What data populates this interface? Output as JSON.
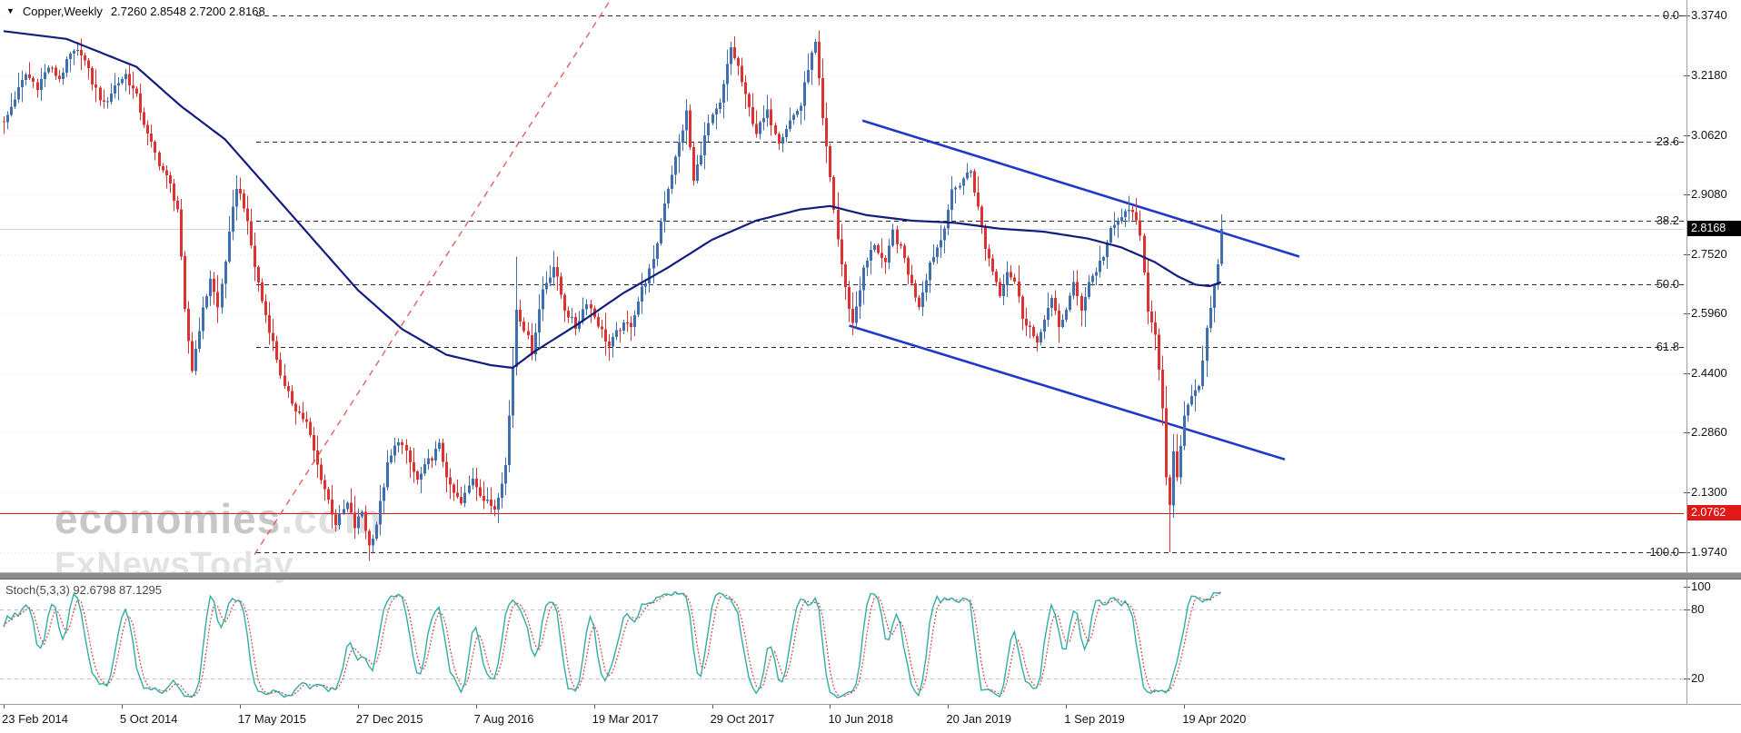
{
  "window": {
    "symbol": "Copper,Weekly",
    "ohlc": "2.7260 2.8548 2.7200 2.8168"
  },
  "watermark": {
    "brand": "economies",
    "suffix": ".com",
    "tagline": "FxNewsToday"
  },
  "price_axis": {
    "ticks": [
      "3.3740",
      "3.2180",
      "3.0620",
      "2.9080",
      "2.7520",
      "2.5960",
      "2.4400",
      "2.2860",
      "2.1300",
      "1.9740"
    ],
    "current_price": "2.8168",
    "alert_price": "2.0762"
  },
  "indicator_panel": {
    "label": "Stoch(5,3,3) 92.6798 87.1295",
    "axis_labels": [
      {
        "text": "100",
        "value": 100
      },
      {
        "text": "80",
        "value": 80
      },
      {
        "text": "20",
        "value": 20
      }
    ],
    "level_lines": [
      80,
      20
    ]
  },
  "x_axis": {
    "labels": [
      {
        "text": "23 Feb 2014",
        "week": 0
      },
      {
        "text": "5 Oct 2014",
        "week": 32
      },
      {
        "text": "17 May 2015",
        "week": 64
      },
      {
        "text": "27 Dec 2015",
        "week": 96
      },
      {
        "text": "7 Aug 2016",
        "week": 128
      },
      {
        "text": "19 Mar 2017",
        "week": 160
      },
      {
        "text": "29 Oct 2017",
        "week": 192
      },
      {
        "text": "10 Jun 2018",
        "week": 224
      },
      {
        "text": "20 Jan 2019",
        "week": 256
      },
      {
        "text": "1 Sep 2019",
        "week": 288
      },
      {
        "text": "19 Apr 2020",
        "week": 320
      }
    ]
  },
  "colors": {
    "bull": "#3f6fae",
    "bear": "#dc3232",
    "ma": "#131d7e",
    "channel_blue": "#2138c9",
    "trend_red": "#e06060",
    "fib_line": "#2a2a2a",
    "grid": "#dfe7ee",
    "alert_line": "#e01818",
    "current_line": "#c5d9ea",
    "badge_current_bg": "#000000",
    "badge_alert_bg": "#e01818",
    "stoch_k": "#2fada5",
    "stoch_d": "#d04545",
    "stoch_level": "#c0c0c0",
    "axis_text": "#151515"
  },
  "chart_data": {
    "type": "candlestick",
    "symbol": "Copper",
    "timeframe": "Weekly",
    "last_bar": {
      "open": 2.726,
      "high": 2.8548,
      "low": 2.72,
      "close": 2.8168
    },
    "price_range_top": 3.374,
    "price_range_bottom": 1.974,
    "y_ticks": [
      3.374,
      3.218,
      3.062,
      2.908,
      2.752,
      2.596,
      2.44,
      2.286,
      2.13,
      1.974
    ],
    "alert_price": 2.0762,
    "weeks": 331,
    "close_anchors": [
      [
        0,
        3.09
      ],
      [
        3,
        3.16
      ],
      [
        6,
        3.22
      ],
      [
        9,
        3.19
      ],
      [
        12,
        3.24
      ],
      [
        15,
        3.21
      ],
      [
        18,
        3.27
      ],
      [
        21,
        3.28
      ],
      [
        24,
        3.2
      ],
      [
        27,
        3.14
      ],
      [
        30,
        3.19
      ],
      [
        33,
        3.22
      ],
      [
        36,
        3.16
      ],
      [
        39,
        3.06
      ],
      [
        42,
        2.99
      ],
      [
        45,
        2.93
      ],
      [
        47,
        2.87
      ],
      [
        49,
        2.6
      ],
      [
        51,
        2.45
      ],
      [
        53,
        2.56
      ],
      [
        56,
        2.69
      ],
      [
        58,
        2.61
      ],
      [
        61,
        2.8
      ],
      [
        63,
        2.93
      ],
      [
        65,
        2.88
      ],
      [
        68,
        2.72
      ],
      [
        70,
        2.63
      ],
      [
        73,
        2.52
      ],
      [
        76,
        2.4
      ],
      [
        79,
        2.35
      ],
      [
        82,
        2.31
      ],
      [
        85,
        2.2
      ],
      [
        88,
        2.11
      ],
      [
        90,
        2.05
      ],
      [
        93,
        2.1
      ],
      [
        95,
        2.04
      ],
      [
        97,
        2.08
      ],
      [
        99,
        1.99
      ],
      [
        101,
        2.05
      ],
      [
        104,
        2.2
      ],
      [
        107,
        2.27
      ],
      [
        109,
        2.23
      ],
      [
        112,
        2.16
      ],
      [
        115,
        2.21
      ],
      [
        118,
        2.25
      ],
      [
        121,
        2.14
      ],
      [
        124,
        2.1
      ],
      [
        127,
        2.17
      ],
      [
        130,
        2.11
      ],
      [
        133,
        2.09
      ],
      [
        136,
        2.2
      ],
      [
        138,
        2.46
      ],
      [
        139,
        2.61
      ],
      [
        141,
        2.56
      ],
      [
        143,
        2.5
      ],
      [
        146,
        2.66
      ],
      [
        149,
        2.72
      ],
      [
        152,
        2.61
      ],
      [
        155,
        2.56
      ],
      [
        158,
        2.63
      ],
      [
        161,
        2.57
      ],
      [
        164,
        2.51
      ],
      [
        167,
        2.56
      ],
      [
        170,
        2.57
      ],
      [
        173,
        2.66
      ],
      [
        176,
        2.73
      ],
      [
        179,
        2.89
      ],
      [
        182,
        3.0
      ],
      [
        185,
        3.12
      ],
      [
        187,
        2.94
      ],
      [
        189,
        3.02
      ],
      [
        191,
        3.09
      ],
      [
        194,
        3.14
      ],
      [
        197,
        3.29
      ],
      [
        199,
        3.24
      ],
      [
        201,
        3.16
      ],
      [
        204,
        3.07
      ],
      [
        207,
        3.12
      ],
      [
        210,
        3.05
      ],
      [
        213,
        3.1
      ],
      [
        216,
        3.14
      ],
      [
        218,
        3.24
      ],
      [
        220,
        3.3
      ],
      [
        222,
        3.1
      ],
      [
        224,
        2.95
      ],
      [
        226,
        2.79
      ],
      [
        228,
        2.66
      ],
      [
        230,
        2.57
      ],
      [
        233,
        2.71
      ],
      [
        236,
        2.78
      ],
      [
        239,
        2.72
      ],
      [
        241,
        2.81
      ],
      [
        244,
        2.74
      ],
      [
        246,
        2.67
      ],
      [
        248,
        2.62
      ],
      [
        251,
        2.73
      ],
      [
        254,
        2.79
      ],
      [
        257,
        2.91
      ],
      [
        260,
        2.95
      ],
      [
        262,
        2.97
      ],
      [
        264,
        2.87
      ],
      [
        266,
        2.77
      ],
      [
        268,
        2.71
      ],
      [
        270,
        2.65
      ],
      [
        272,
        2.71
      ],
      [
        274,
        2.68
      ],
      [
        276,
        2.59
      ],
      [
        278,
        2.56
      ],
      [
        280,
        2.51
      ],
      [
        282,
        2.59
      ],
      [
        284,
        2.63
      ],
      [
        286,
        2.56
      ],
      [
        288,
        2.61
      ],
      [
        290,
        2.67
      ],
      [
        292,
        2.61
      ],
      [
        294,
        2.68
      ],
      [
        296,
        2.71
      ],
      [
        298,
        2.75
      ],
      [
        300,
        2.81
      ],
      [
        303,
        2.85
      ],
      [
        306,
        2.87
      ],
      [
        308,
        2.79
      ],
      [
        310,
        2.61
      ],
      [
        312,
        2.55
      ],
      [
        314,
        2.34
      ],
      [
        315,
        2.16
      ],
      [
        316,
        2.1
      ],
      [
        317,
        2.23
      ],
      [
        318,
        2.16
      ],
      [
        319,
        2.26
      ],
      [
        320,
        2.33
      ],
      [
        322,
        2.39
      ],
      [
        324,
        2.41
      ],
      [
        326,
        2.55
      ],
      [
        328,
        2.66
      ],
      [
        329,
        2.73
      ],
      [
        330,
        2.8168
      ]
    ],
    "ma_anchors": [
      [
        0,
        3.333
      ],
      [
        17,
        3.313
      ],
      [
        36,
        3.24
      ],
      [
        48,
        3.138
      ],
      [
        60,
        3.051
      ],
      [
        72,
        2.92
      ],
      [
        84,
        2.789
      ],
      [
        96,
        2.658
      ],
      [
        108,
        2.556
      ],
      [
        120,
        2.489
      ],
      [
        132,
        2.462
      ],
      [
        138,
        2.455
      ],
      [
        144,
        2.498
      ],
      [
        156,
        2.571
      ],
      [
        168,
        2.65
      ],
      [
        180,
        2.716
      ],
      [
        192,
        2.789
      ],
      [
        204,
        2.839
      ],
      [
        216,
        2.868
      ],
      [
        224,
        2.877
      ],
      [
        234,
        2.853
      ],
      [
        246,
        2.839
      ],
      [
        258,
        2.833
      ],
      [
        270,
        2.818
      ],
      [
        282,
        2.81
      ],
      [
        294,
        2.792
      ],
      [
        303,
        2.769
      ],
      [
        312,
        2.731
      ],
      [
        318,
        2.695
      ],
      [
        323,
        2.672
      ],
      [
        327,
        2.668
      ],
      [
        330,
        2.678
      ]
    ],
    "bar_overrides": {
      "99": {
        "low": 1.952
      },
      "139": {
        "high": 2.745
      },
      "316": {
        "low": 1.974
      },
      "330": {
        "open": 2.726,
        "high": 2.8548,
        "low": 2.72,
        "close": 2.8168
      }
    },
    "fibonacci": {
      "levels": [
        {
          "label": "0.0",
          "price": 3.374
        },
        {
          "label": "23.6",
          "price": 3.0436
        },
        {
          "label": "38.2",
          "price": 2.8392
        },
        {
          "label": "50.0",
          "price": 2.674
        },
        {
          "label": "61.8",
          "price": 2.5088
        },
        {
          "label": "100.0",
          "price": 1.974
        }
      ],
      "line_x_start": 282
    },
    "trendlines": [
      {
        "name": "rising-trendline",
        "color_key": "trend_red",
        "style": "dashed",
        "width": 1.4,
        "from": {
          "week": 68,
          "price": 1.968
        },
        "to": {
          "week": 164.5,
          "price": 3.415
        }
      },
      {
        "name": "channel-upper-line",
        "color_key": "channel_blue",
        "style": "solid",
        "width": 2.6,
        "from": {
          "week": 232.8,
          "price": 3.1
        },
        "to": {
          "week": 351.2,
          "price": 2.745
        }
      },
      {
        "name": "channel-lower-line",
        "color_key": "channel_blue",
        "style": "solid",
        "width": 2.6,
        "from": {
          "week": 229.2,
          "price": 2.565
        },
        "to": {
          "week": 347.3,
          "price": 2.216
        }
      }
    ],
    "indicator": {
      "name": "Stochastic",
      "params": [
        5,
        3,
        3
      ],
      "k": 92.6798,
      "d": 87.1295,
      "range": [
        0,
        100
      ],
      "levels": [
        80,
        20
      ]
    }
  }
}
